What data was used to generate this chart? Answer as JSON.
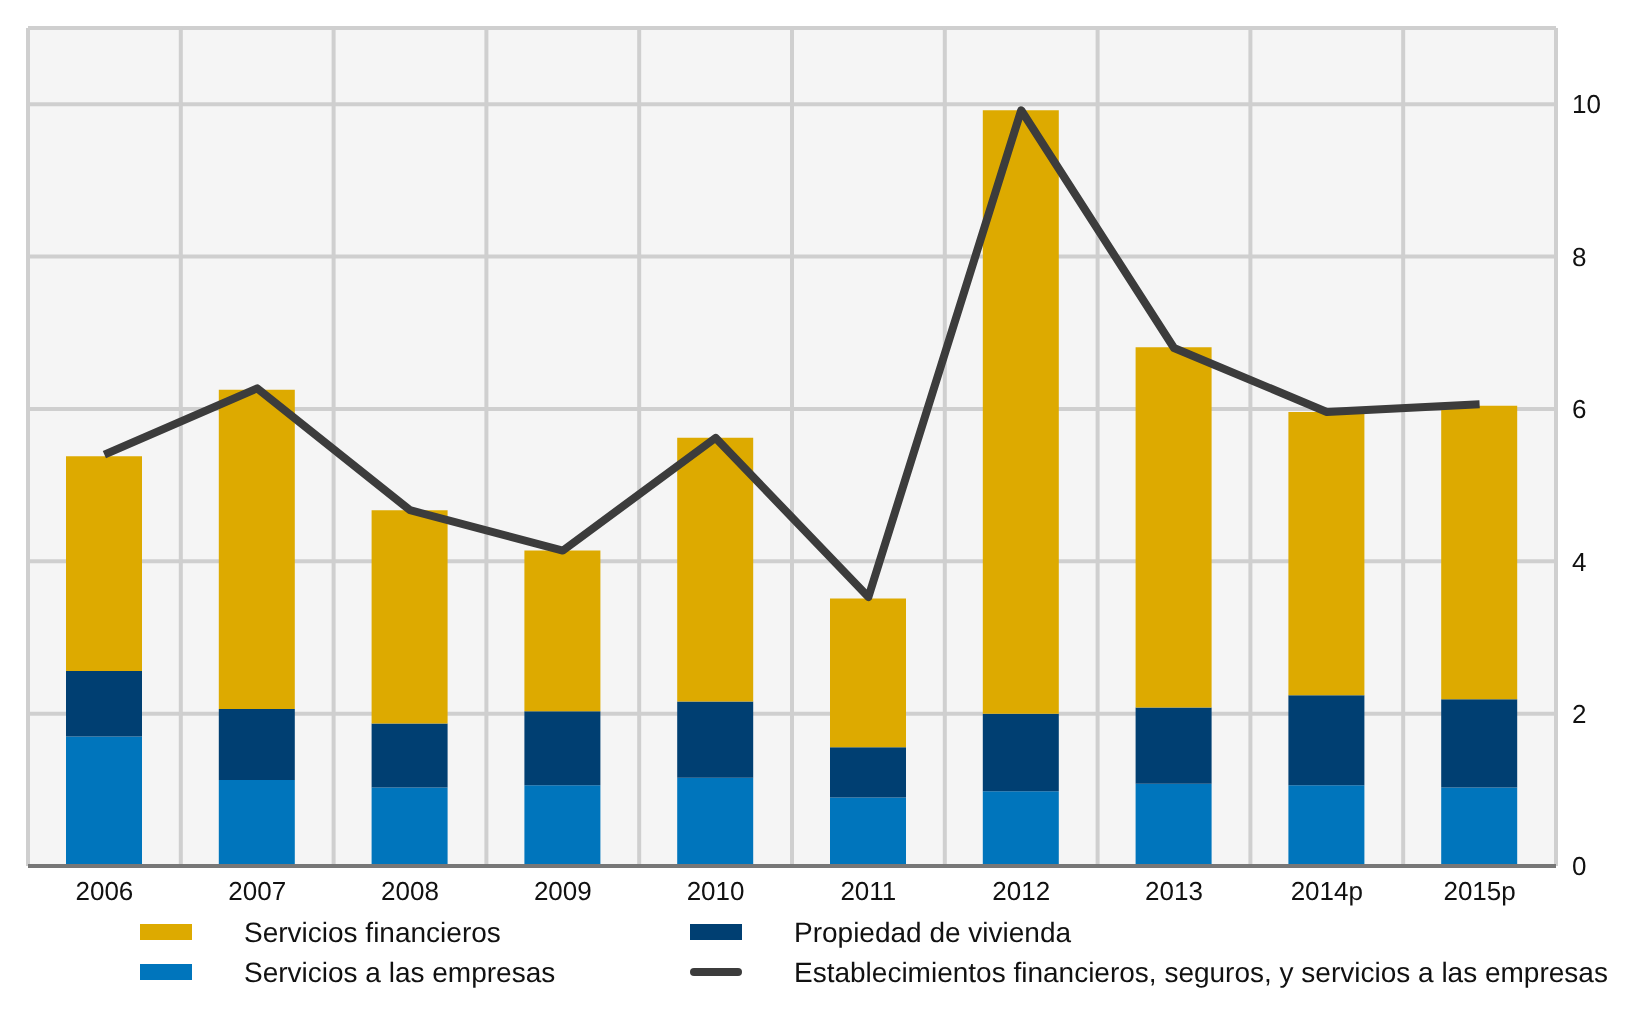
{
  "chart_data": {
    "type": "bar",
    "stacked": true,
    "categories": [
      "2006",
      "2007",
      "2008",
      "2009",
      "2010",
      "2011",
      "2012",
      "2013",
      "2014p",
      "2015p"
    ],
    "series": [
      {
        "name": "Servicios a las empresas",
        "color": "#0075bc",
        "values": [
          1.7,
          1.13,
          1.03,
          1.06,
          1.16,
          0.9,
          0.98,
          1.08,
          1.06,
          1.03
        ]
      },
      {
        "name": "Propiedad de vivienda",
        "color": "#003f72",
        "values": [
          0.86,
          0.93,
          0.84,
          0.97,
          1.0,
          0.66,
          1.02,
          1.0,
          1.18,
          1.16
        ]
      },
      {
        "name": "Servicios financieros",
        "color": "#ddaa00",
        "values": [
          2.82,
          4.19,
          2.8,
          2.11,
          3.46,
          1.95,
          7.92,
          4.73,
          3.72,
          3.85
        ]
      },
      {
        "name": "Establecimientos financieros, seguros, y servicios a las empresas",
        "type": "line",
        "color": "#3c3c3c",
        "values": [
          5.4,
          6.27,
          4.67,
          4.14,
          5.62,
          3.53,
          9.92,
          6.8,
          5.96,
          6.06
        ]
      }
    ],
    "ylim": [
      0,
      11
    ],
    "yticks": [
      0,
      2,
      4,
      6,
      8,
      10
    ],
    "grid": true,
    "legend": "bottom",
    "marker": "none",
    "line_style": "solid"
  }
}
